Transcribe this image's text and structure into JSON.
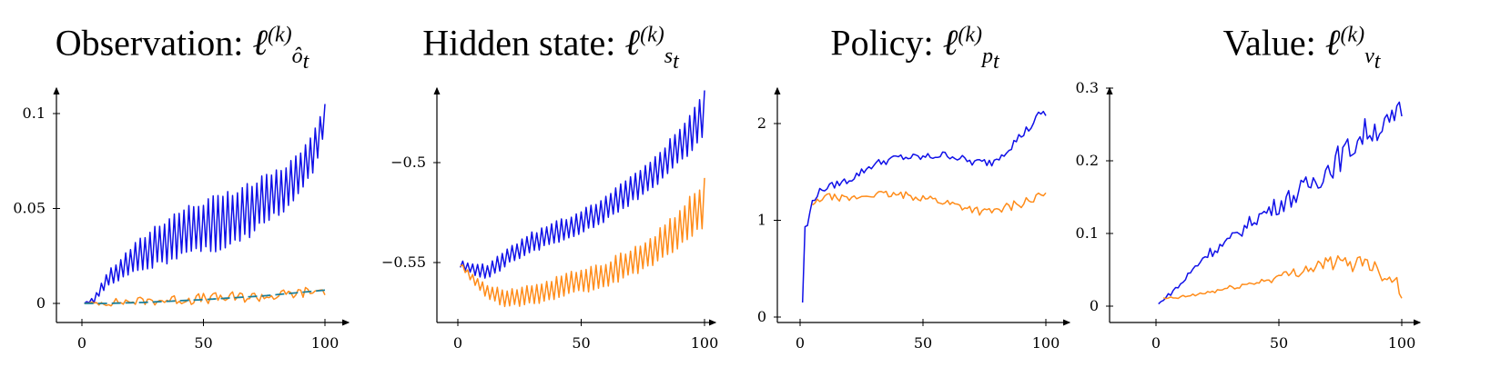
{
  "chart_data": [
    {
      "type": "line",
      "title": "Observation: ℓ^(k)_ô_t",
      "title_text": "Observation:",
      "title_math": {
        "base": "ℓ",
        "sup": "(k)",
        "sub": "ô",
        "subsub": "t"
      },
      "xlim": [
        0,
        100
      ],
      "ylim": [
        -0.008,
        0.11
      ],
      "xticks": [
        0,
        50,
        100
      ],
      "xtick_labels": [
        "0",
        "50",
        "100"
      ],
      "yticks": [
        0,
        0.05,
        0.1
      ],
      "ytick_labels": [
        "0",
        "0.05",
        "0.1"
      ],
      "series": [
        {
          "color": "#1010e8",
          "style": "solid",
          "kind": "zigzag",
          "anchors": [
            [
              1,
              0.0
            ],
            [
              5,
              0.002
            ],
            [
              10,
              0.012
            ],
            [
              20,
              0.022
            ],
            [
              30,
              0.03
            ],
            [
              40,
              0.037
            ],
            [
              50,
              0.041
            ],
            [
              60,
              0.043
            ],
            [
              70,
              0.05
            ],
            [
              80,
              0.058
            ],
            [
              90,
              0.068
            ],
            [
              95,
              0.078
            ],
            [
              99,
              0.095
            ],
            [
              100,
              0.098
            ]
          ],
          "amplitude": [
            [
              1,
              0.0
            ],
            [
              10,
              0.004
            ],
            [
              30,
              0.012
            ],
            [
              60,
              0.016
            ],
            [
              90,
              0.012
            ],
            [
              100,
              0.01
            ]
          ]
        },
        {
          "color": "#ff8c1a",
          "style": "solid",
          "kind": "noisy",
          "anchors": [
            [
              1,
              0.0
            ],
            [
              20,
              0.001
            ],
            [
              40,
              0.002
            ],
            [
              60,
              0.003
            ],
            [
              80,
              0.004
            ],
            [
              100,
              0.007
            ]
          ],
          "amplitude": [
            [
              1,
              0.0
            ],
            [
              10,
              0.002
            ],
            [
              50,
              0.003
            ],
            [
              100,
              0.003
            ]
          ]
        },
        {
          "color": "#1a7f9a",
          "style": "dashed",
          "kind": "smooth",
          "anchors": [
            [
              1,
              0.0
            ],
            [
              10,
              0.0
            ],
            [
              25,
              0.0005
            ],
            [
              50,
              0.002
            ],
            [
              75,
              0.004
            ],
            [
              100,
              0.007
            ]
          ],
          "amplitude": [
            [
              1,
              0
            ],
            [
              100,
              0
            ]
          ]
        }
      ]
    },
    {
      "type": "line",
      "title": "Hidden state: ℓ^(k)_s_t",
      "title_text": "Hidden state:",
      "title_math": {
        "base": "ℓ",
        "sup": "(k)",
        "sub": "s",
        "subsub": "t"
      },
      "xlim": [
        0,
        100
      ],
      "ylim": [
        -0.585,
        -0.47
      ],
      "xticks": [
        0,
        50,
        100
      ],
      "xtick_labels": [
        "0",
        "50",
        "100"
      ],
      "yticks": [
        -0.55,
        -0.5
      ],
      "ytick_labels": [
        "−0.55",
        "−0.5"
      ],
      "series": [
        {
          "color": "#1010e8",
          "style": "solid",
          "kind": "zigzag",
          "anchors": [
            [
              1,
              -0.551
            ],
            [
              6,
              -0.553
            ],
            [
              12,
              -0.555
            ],
            [
              20,
              -0.547
            ],
            [
              30,
              -0.54
            ],
            [
              40,
              -0.535
            ],
            [
              50,
              -0.53
            ],
            [
              60,
              -0.523
            ],
            [
              70,
              -0.514
            ],
            [
              80,
              -0.504
            ],
            [
              90,
              -0.492
            ],
            [
              96,
              -0.483
            ],
            [
              100,
              -0.475
            ]
          ],
          "amplitude": [
            [
              1,
              0.002
            ],
            [
              10,
              0.004
            ],
            [
              40,
              0.006
            ],
            [
              80,
              0.008
            ],
            [
              100,
              0.012
            ]
          ]
        },
        {
          "color": "#ff8c1a",
          "style": "solid",
          "kind": "zigzag",
          "anchors": [
            [
              1,
              -0.551
            ],
            [
              6,
              -0.558
            ],
            [
              12,
              -0.565
            ],
            [
              20,
              -0.568
            ],
            [
              30,
              -0.566
            ],
            [
              40,
              -0.563
            ],
            [
              50,
              -0.559
            ],
            [
              60,
              -0.556
            ],
            [
              70,
              -0.55
            ],
            [
              80,
              -0.543
            ],
            [
              90,
              -0.533
            ],
            [
              96,
              -0.526
            ],
            [
              100,
              -0.52
            ]
          ],
          "amplitude": [
            [
              1,
              0.001
            ],
            [
              12,
              0.004
            ],
            [
              40,
              0.006
            ],
            [
              80,
              0.008
            ],
            [
              100,
              0.013
            ]
          ]
        }
      ]
    },
    {
      "type": "line",
      "title": "Policy: ℓ^(k)_p_t",
      "title_text": "Policy:",
      "title_math": {
        "base": "ℓ",
        "sup": "(k)",
        "sub": "p",
        "subsub": "t"
      },
      "xlim": [
        0,
        100
      ],
      "ylim": [
        -0.05,
        2.3
      ],
      "xticks": [
        0,
        50,
        100
      ],
      "xtick_labels": [
        "0",
        "50",
        "100"
      ],
      "yticks": [
        0,
        1,
        2
      ],
      "ytick_labels": [
        "0",
        "1",
        "2"
      ],
      "series": [
        {
          "color": "#1010e8",
          "style": "solid",
          "kind": "noisy",
          "anchors": [
            [
              1,
              0.15
            ],
            [
              2,
              0.93
            ],
            [
              3,
              0.95
            ],
            [
              5,
              1.2
            ],
            [
              8,
              1.3
            ],
            [
              10,
              1.33
            ],
            [
              20,
              1.42
            ],
            [
              30,
              1.58
            ],
            [
              40,
              1.65
            ],
            [
              50,
              1.65
            ],
            [
              60,
              1.68
            ],
            [
              70,
              1.6
            ],
            [
              78,
              1.6
            ],
            [
              85,
              1.75
            ],
            [
              90,
              1.88
            ],
            [
              95,
              2.0
            ],
            [
              98,
              2.12
            ],
            [
              100,
              2.08
            ]
          ],
          "amplitude": [
            [
              1,
              0.0
            ],
            [
              5,
              0.03
            ],
            [
              20,
              0.04
            ],
            [
              60,
              0.04
            ],
            [
              100,
              0.05
            ]
          ]
        },
        {
          "color": "#ff8c1a",
          "style": "solid",
          "kind": "noisy",
          "anchors": [
            [
              5,
              1.15
            ],
            [
              10,
              1.25
            ],
            [
              20,
              1.22
            ],
            [
              30,
              1.27
            ],
            [
              40,
              1.26
            ],
            [
              50,
              1.24
            ],
            [
              60,
              1.18
            ],
            [
              70,
              1.12
            ],
            [
              75,
              1.08
            ],
            [
              80,
              1.1
            ],
            [
              90,
              1.18
            ],
            [
              95,
              1.22
            ],
            [
              100,
              1.27
            ]
          ],
          "amplitude": [
            [
              5,
              0.03
            ],
            [
              40,
              0.04
            ],
            [
              100,
              0.05
            ]
          ]
        }
      ]
    },
    {
      "type": "line",
      "title": "Value: ℓ^(k)_v_t",
      "title_text": "Value:",
      "title_math": {
        "base": "ℓ",
        "sup": "(k)",
        "sub": "v",
        "subsub": "t"
      },
      "xlim": [
        0,
        100
      ],
      "ylim": [
        -0.02,
        0.3
      ],
      "xticks": [
        0,
        50,
        100
      ],
      "xtick_labels": [
        "0",
        "50",
        "100"
      ],
      "yticks": [
        0,
        0.1,
        0.2,
        0.3
      ],
      "ytick_labels": [
        "0",
        "0.1",
        "0.2",
        "0.3"
      ],
      "series": [
        {
          "color": "#1010e8",
          "style": "solid",
          "kind": "noisy",
          "anchors": [
            [
              1,
              0.003
            ],
            [
              5,
              0.015
            ],
            [
              10,
              0.03
            ],
            [
              15,
              0.05
            ],
            [
              20,
              0.07
            ],
            [
              30,
              0.09
            ],
            [
              40,
              0.12
            ],
            [
              50,
              0.14
            ],
            [
              60,
              0.16
            ],
            [
              70,
              0.19
            ],
            [
              80,
              0.22
            ],
            [
              85,
              0.24
            ],
            [
              90,
              0.245
            ],
            [
              95,
              0.25
            ],
            [
              100,
              0.27
            ]
          ],
          "amplitude": [
            [
              1,
              0.0
            ],
            [
              10,
              0.006
            ],
            [
              40,
              0.01
            ],
            [
              70,
              0.02
            ],
            [
              100,
              0.018
            ]
          ]
        },
        {
          "color": "#ff8c1a",
          "style": "solid",
          "kind": "noisy",
          "anchors": [
            [
              3,
              0.01
            ],
            [
              10,
              0.012
            ],
            [
              20,
              0.018
            ],
            [
              30,
              0.025
            ],
            [
              40,
              0.032
            ],
            [
              50,
              0.04
            ],
            [
              60,
              0.05
            ],
            [
              70,
              0.06
            ],
            [
              80,
              0.058
            ],
            [
              85,
              0.065
            ],
            [
              90,
              0.05
            ],
            [
              95,
              0.04
            ],
            [
              98,
              0.035
            ],
            [
              100,
              0.015
            ]
          ],
          "amplitude": [
            [
              3,
              0.002
            ],
            [
              40,
              0.004
            ],
            [
              70,
              0.01
            ],
            [
              100,
              0.012
            ]
          ]
        }
      ]
    }
  ]
}
